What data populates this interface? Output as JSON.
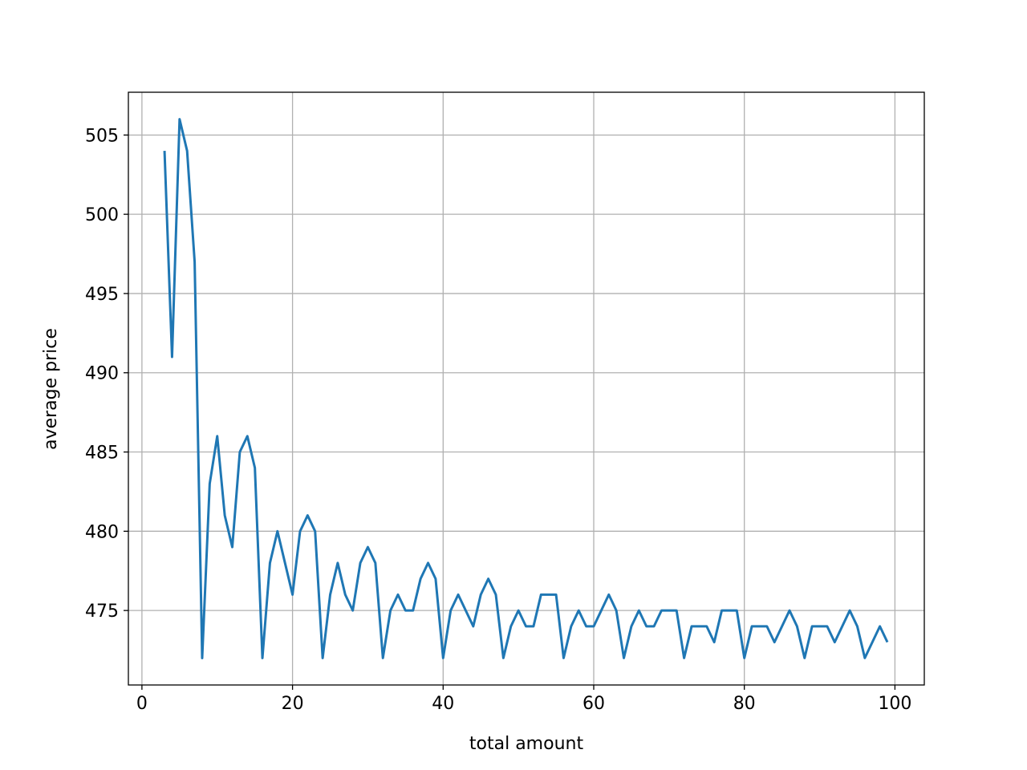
{
  "chart_data": {
    "type": "line",
    "x_label": "total amount",
    "y_label": "average price",
    "x": [
      3,
      4,
      5,
      6,
      7,
      8,
      9,
      10,
      11,
      12,
      13,
      14,
      15,
      16,
      17,
      18,
      19,
      20,
      21,
      22,
      23,
      24,
      25,
      26,
      27,
      28,
      29,
      30,
      31,
      32,
      33,
      34,
      35,
      36,
      37,
      38,
      39,
      40,
      41,
      42,
      43,
      44,
      45,
      46,
      47,
      48,
      49,
      50,
      51,
      52,
      53,
      54,
      55,
      56,
      57,
      58,
      59,
      60,
      61,
      62,
      63,
      64,
      65,
      66,
      67,
      68,
      69,
      70,
      71,
      72,
      73,
      74,
      75,
      76,
      77,
      78,
      79,
      80,
      81,
      82,
      83,
      84,
      85,
      86,
      87,
      88,
      89,
      90,
      91,
      92,
      93,
      94,
      95,
      96,
      97,
      98,
      99
    ],
    "series": [
      {
        "color": "#1f77b4",
        "values": [
          504,
          491,
          506,
          504,
          497,
          472,
          483,
          486,
          481,
          479,
          485,
          486,
          484,
          472,
          478,
          480,
          478,
          476,
          480,
          481,
          480,
          472,
          476,
          478,
          476,
          475,
          478,
          479,
          478,
          472,
          475,
          476,
          475,
          475,
          477,
          478,
          477,
          472,
          475,
          476,
          475,
          474,
          476,
          477,
          476,
          472,
          474,
          475,
          474,
          474,
          476,
          476,
          476,
          472,
          474,
          475,
          474,
          474,
          475,
          476,
          475,
          472,
          474,
          475,
          474,
          474,
          475,
          475,
          475,
          472,
          474,
          474,
          474,
          473,
          475,
          475,
          475,
          472,
          474,
          474,
          474,
          473,
          474,
          475,
          474,
          472,
          474,
          474,
          474,
          473,
          474,
          475,
          474,
          472,
          473,
          474,
          473
        ]
      }
    ],
    "xlim": [
      -1.8,
      103.9
    ],
    "ylim": [
      470.3,
      507.7
    ],
    "xticks": [
      0,
      20,
      40,
      60,
      80,
      100
    ],
    "yticks": [
      475,
      480,
      485,
      490,
      495,
      500,
      505
    ],
    "grid": true
  }
}
